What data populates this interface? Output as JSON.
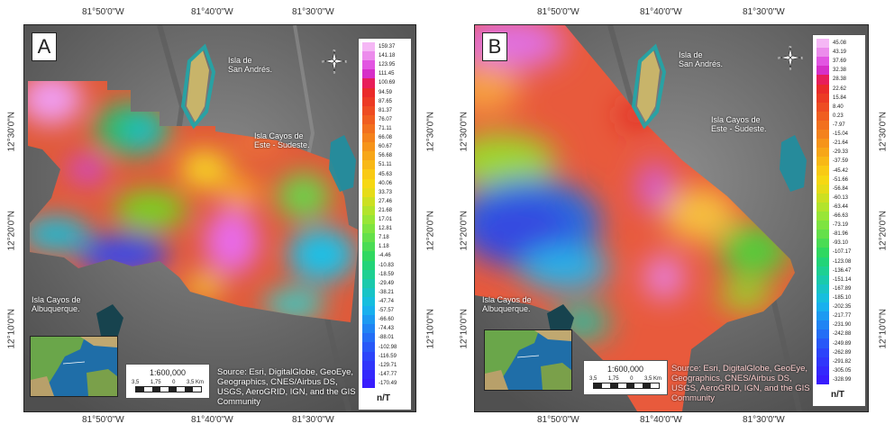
{
  "axes": {
    "top_ticks": [
      "81°50'0\"W",
      "81°40'0\"W",
      "81°30'0\"W"
    ],
    "bottom_ticks": [
      "81°50'0\"W",
      "81°40'0\"W",
      "81°30'0\"W"
    ],
    "left_ticks": [
      "12°30'0\"N",
      "12°20'0\"N",
      "12°10'0\"N"
    ],
    "right_ticks": [
      "12°30'0\"N",
      "12°20'0\"N",
      "12°10'0\"N"
    ]
  },
  "places": {
    "san_andres": "Isla de\nSan Andrés.",
    "cayos_este": "Isla Cayos de\nEste - Sudeste.",
    "albuquerque": "Isla Cayos de\nAlbuquerque."
  },
  "scale": {
    "ratio": "1:600,000",
    "labels": [
      "3,5",
      "1,75",
      "0",
      "3,5 Km"
    ]
  },
  "source_lines": [
    "Source: Esri, DigitalGlobe, GeoEye,",
    "Geographics, CNES/Airbus DS,",
    "USGS, AeroGRID, IGN, and the GIS",
    "Community"
  ],
  "compass": {
    "n": "N",
    "s": "S",
    "e": "E",
    "w": "W"
  },
  "panels": [
    {
      "letter": "A",
      "unit": "n/T",
      "legend": [
        "159.37",
        "141.18",
        "123.95",
        "111.45",
        "100.69",
        "94.59",
        "87.65",
        "81.37",
        "76.07",
        "71.11",
        "66.08",
        "60.67",
        "56.68",
        "51.11",
        "45.63",
        "40.06",
        "33.73",
        "27.46",
        "21.68",
        "17.01",
        "12.81",
        "7.18",
        "1.18",
        "-4.46",
        "-10.83",
        "-18.59",
        "-29.49",
        "-38.21",
        "-47.74",
        "-57.57",
        "-66.60",
        "-74.43",
        "-88.01",
        "-102.98",
        "-116.59",
        "-129.71",
        "-147.77",
        "-170.49"
      ]
    },
    {
      "letter": "B",
      "unit": "n/T",
      "legend": [
        "45.08",
        "43.19",
        "37.69",
        "32.38",
        "28.38",
        "22.62",
        "15.84",
        "8.40",
        "0.23",
        "-7.97",
        "-15.04",
        "-21.64",
        "-29.33",
        "-37.59",
        "-45.42",
        "-51.66",
        "-56.84",
        "-60.13",
        "-63.44",
        "-66.63",
        "-73.19",
        "-81.96",
        "-93.10",
        "-107.17",
        "-123.08",
        "-136.47",
        "-151.14",
        "-167.89",
        "-185.10",
        "-202.35",
        "-217.77",
        "-231.90",
        "-242.88",
        "-249.89",
        "-262.89",
        "-291.82",
        "-305.05",
        "-328.99"
      ]
    }
  ]
}
